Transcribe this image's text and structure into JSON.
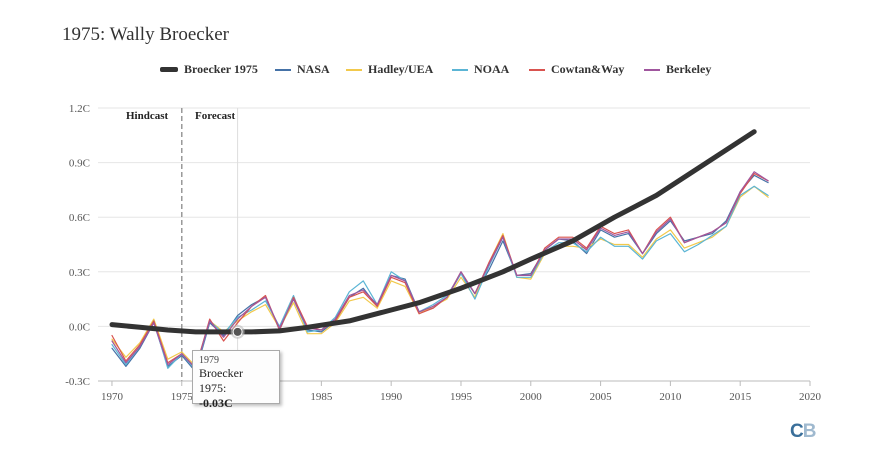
{
  "chart_data": {
    "type": "line",
    "title": "1975: Wally Broecker",
    "xlim": [
      1969,
      2020
    ],
    "ylim": [
      -0.3,
      1.2
    ],
    "xticks": [
      1970,
      1975,
      1980,
      1985,
      1990,
      1995,
      2000,
      2005,
      2010,
      2015,
      2020
    ],
    "yticks": [
      -0.3,
      0.0,
      0.3,
      0.6,
      0.9,
      1.2
    ],
    "ytick_labels": [
      "-0.3C",
      "0.0C",
      "0.3C",
      "0.6C",
      "0.9C",
      "1.2C"
    ],
    "legend_position": "top",
    "annotations": {
      "divider_year": 1975,
      "hindcast": "Hindcast",
      "forecast": "Forecast"
    },
    "grid": {
      "vertical_line_year": 1979
    },
    "series": [
      {
        "name": "Broecker 1975",
        "color": "#333333",
        "thick": true,
        "x": [
          1970,
          1972,
          1974,
          1976,
          1978,
          1980,
          1982,
          1984,
          1987,
          1990,
          1992,
          1995,
          1998,
          2000,
          2003,
          2006,
          2009,
          2012,
          2016
        ],
        "y": [
          0.01,
          -0.005,
          -0.02,
          -0.03,
          -0.03,
          -0.03,
          -0.025,
          -0.005,
          0.03,
          0.09,
          0.13,
          0.21,
          0.3,
          0.37,
          0.47,
          0.6,
          0.72,
          0.87,
          1.07
        ]
      },
      {
        "name": "NASA",
        "color": "#4572a7",
        "thick": false,
        "x": [
          1970,
          1971,
          1972,
          1973,
          1974,
          1975,
          1976,
          1977,
          1978,
          1979,
          1980,
          1981,
          1982,
          1983,
          1984,
          1985,
          1986,
          1987,
          1988,
          1989,
          1990,
          1991,
          1992,
          1993,
          1994,
          1995,
          1996,
          1997,
          1998,
          1999,
          2000,
          2001,
          2002,
          2003,
          2004,
          2005,
          2006,
          2007,
          2008,
          2009,
          2010,
          2011,
          2012,
          2013,
          2014,
          2015,
          2016,
          2017
        ],
        "y": [
          -0.12,
          -0.22,
          -0.12,
          0.02,
          -0.22,
          -0.16,
          -0.25,
          0.02,
          -0.05,
          0.06,
          0.12,
          0.16,
          -0.02,
          0.15,
          -0.02,
          -0.03,
          0.03,
          0.16,
          0.21,
          0.11,
          0.28,
          0.26,
          0.08,
          0.1,
          0.16,
          0.29,
          0.18,
          0.31,
          0.47,
          0.28,
          0.29,
          0.42,
          0.48,
          0.47,
          0.4,
          0.53,
          0.49,
          0.51,
          0.4,
          0.51,
          0.58,
          0.47,
          0.49,
          0.51,
          0.58,
          0.74,
          0.83,
          0.79
        ]
      },
      {
        "name": "Hadley/UEA",
        "color": "#f2c94c",
        "thick": false,
        "x": [
          1970,
          1971,
          1972,
          1973,
          1974,
          1975,
          1976,
          1977,
          1978,
          1979,
          1980,
          1981,
          1982,
          1983,
          1984,
          1985,
          1986,
          1987,
          1988,
          1989,
          1990,
          1991,
          1992,
          1993,
          1994,
          1995,
          1996,
          1997,
          1998,
          1999,
          2000,
          2001,
          2002,
          2003,
          2004,
          2005,
          2006,
          2007,
          2008,
          2009,
          2010,
          2011,
          2012,
          2013,
          2014,
          2015,
          2016,
          2017
        ],
        "y": [
          -0.07,
          -0.17,
          -0.09,
          0.04,
          -0.18,
          -0.14,
          -0.22,
          0.03,
          -0.03,
          0.03,
          0.08,
          0.12,
          -0.01,
          0.13,
          -0.04,
          -0.04,
          0.02,
          0.14,
          0.16,
          0.1,
          0.25,
          0.22,
          0.07,
          0.11,
          0.15,
          0.27,
          0.16,
          0.35,
          0.51,
          0.27,
          0.26,
          0.4,
          0.44,
          0.44,
          0.43,
          0.48,
          0.45,
          0.45,
          0.38,
          0.48,
          0.53,
          0.43,
          0.46,
          0.49,
          0.55,
          0.71,
          0.77,
          0.71
        ]
      },
      {
        "name": "NOAA",
        "color": "#5bb5d5",
        "thick": false,
        "x": [
          1970,
          1971,
          1972,
          1973,
          1974,
          1975,
          1976,
          1977,
          1978,
          1979,
          1980,
          1981,
          1982,
          1983,
          1984,
          1985,
          1986,
          1987,
          1988,
          1989,
          1990,
          1991,
          1992,
          1993,
          1994,
          1995,
          1996,
          1997,
          1998,
          1999,
          2000,
          2001,
          2002,
          2003,
          2004,
          2005,
          2006,
          2007,
          2008,
          2009,
          2010,
          2011,
          2012,
          2013,
          2014,
          2015,
          2016,
          2017
        ],
        "y": [
          -0.1,
          -0.21,
          -0.11,
          0.03,
          -0.23,
          -0.15,
          -0.24,
          0.03,
          -0.04,
          0.05,
          0.09,
          0.14,
          0.0,
          0.17,
          -0.03,
          -0.02,
          0.05,
          0.19,
          0.25,
          0.12,
          0.3,
          0.25,
          0.08,
          0.12,
          0.17,
          0.29,
          0.15,
          0.33,
          0.49,
          0.27,
          0.27,
          0.41,
          0.46,
          0.46,
          0.41,
          0.49,
          0.44,
          0.44,
          0.37,
          0.47,
          0.51,
          0.41,
          0.45,
          0.5,
          0.55,
          0.72,
          0.77,
          0.72
        ]
      },
      {
        "name": "Cowtan&Way",
        "color": "#d9534f",
        "thick": false,
        "x": [
          1970,
          1971,
          1972,
          1973,
          1974,
          1975,
          1976,
          1977,
          1978,
          1979,
          1980,
          1981,
          1982,
          1983,
          1984,
          1985,
          1986,
          1987,
          1988,
          1989,
          1990,
          1991,
          1992,
          1993,
          1994,
          1995,
          1996,
          1997,
          1998,
          1999,
          2000,
          2001,
          2002,
          2003,
          2004,
          2005,
          2006,
          2007,
          2008,
          2009,
          2010,
          2011,
          2012,
          2013,
          2014,
          2015,
          2016,
          2017
        ],
        "y": [
          -0.05,
          -0.19,
          -0.1,
          0.03,
          -0.2,
          -0.15,
          -0.23,
          0.04,
          -0.08,
          0.02,
          0.11,
          0.17,
          -0.02,
          0.16,
          0.0,
          -0.02,
          0.03,
          0.16,
          0.19,
          0.11,
          0.27,
          0.24,
          0.07,
          0.1,
          0.16,
          0.3,
          0.18,
          0.35,
          0.5,
          0.28,
          0.28,
          0.43,
          0.49,
          0.49,
          0.43,
          0.55,
          0.51,
          0.53,
          0.4,
          0.53,
          0.6,
          0.46,
          0.49,
          0.52,
          0.57,
          0.73,
          0.84,
          0.8
        ]
      },
      {
        "name": "Berkeley",
        "color": "#a0569e",
        "thick": false,
        "x": [
          1970,
          1971,
          1972,
          1973,
          1974,
          1975,
          1976,
          1977,
          1978,
          1979,
          1980,
          1981,
          1982,
          1983,
          1984,
          1985,
          1986,
          1987,
          1988,
          1989,
          1990,
          1991,
          1992,
          1993,
          1994,
          1995,
          1996,
          1997,
          1998,
          1999,
          2000,
          2001,
          2002,
          2003,
          2004,
          2005,
          2006,
          2007,
          2008,
          2009,
          2010,
          2011,
          2012,
          2013,
          2014,
          2015,
          2016,
          2017
        ],
        "y": [
          -0.08,
          -0.2,
          -0.11,
          0.02,
          -0.21,
          -0.15,
          -0.23,
          0.03,
          -0.06,
          0.04,
          0.11,
          0.16,
          -0.01,
          0.15,
          -0.01,
          -0.02,
          0.04,
          0.17,
          0.2,
          0.12,
          0.28,
          0.25,
          0.08,
          0.11,
          0.16,
          0.3,
          0.18,
          0.34,
          0.49,
          0.28,
          0.28,
          0.42,
          0.48,
          0.48,
          0.42,
          0.54,
          0.5,
          0.52,
          0.4,
          0.52,
          0.59,
          0.46,
          0.49,
          0.52,
          0.57,
          0.74,
          0.85,
          0.8
        ]
      }
    ],
    "tooltip": {
      "year": "1979",
      "label": "Broecker 1975:",
      "value": "-0.03C",
      "series": 0,
      "point_x": 1979,
      "point_y": -0.03
    }
  },
  "logo": {
    "text": "CB",
    "color_c": "#3a6f9a",
    "color_b": "#9fb9cf"
  }
}
